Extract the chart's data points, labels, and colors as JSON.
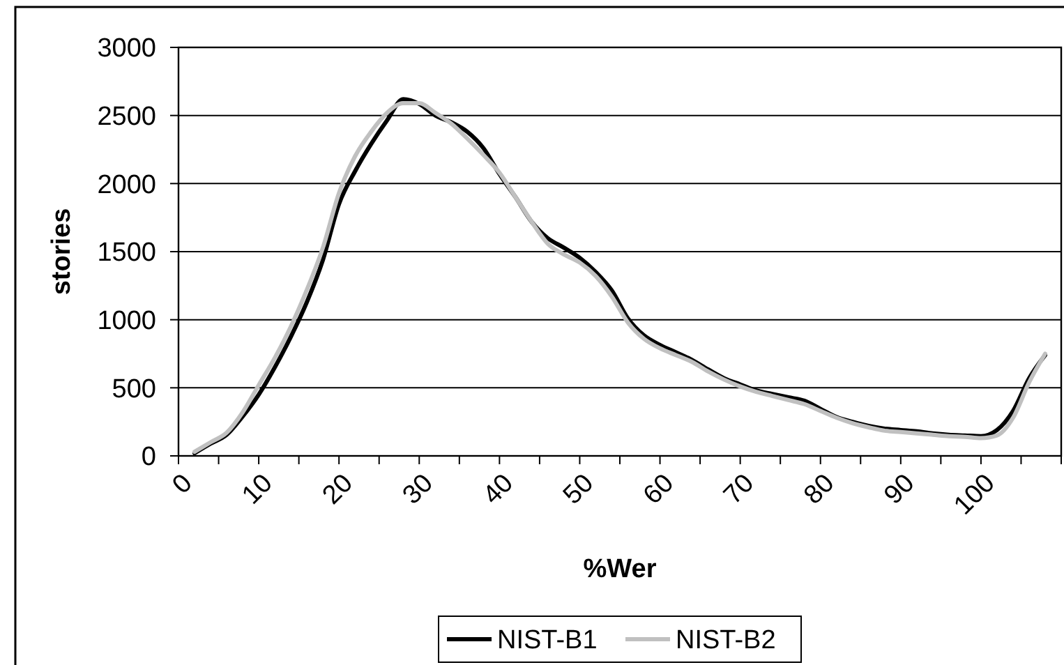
{
  "chart_data": {
    "type": "line",
    "xlabel": "%Wer",
    "ylabel": "stories",
    "x": [
      2,
      4,
      6,
      8,
      10,
      12,
      14,
      16,
      18,
      20,
      22,
      24,
      26,
      28,
      30,
      32,
      34,
      36,
      38,
      40,
      42,
      44,
      46,
      48,
      50,
      52,
      54,
      56,
      58,
      60,
      62,
      64,
      66,
      68,
      70,
      72,
      74,
      76,
      78,
      80,
      82,
      84,
      86,
      88,
      90,
      92,
      94,
      96,
      98,
      100,
      102,
      104,
      106,
      108
    ],
    "series": [
      {
        "name": "NIST-B1",
        "color": "#000000",
        "values": [
          20,
          90,
          155,
          290,
          450,
          650,
          875,
          1130,
          1440,
          1850,
          2090,
          2290,
          2465,
          2620,
          2585,
          2500,
          2450,
          2380,
          2260,
          2070,
          1900,
          1720,
          1600,
          1530,
          1455,
          1350,
          1215,
          1010,
          885,
          815,
          760,
          705,
          635,
          570,
          525,
          480,
          455,
          430,
          405,
          345,
          285,
          250,
          220,
          200,
          190,
          180,
          165,
          155,
          150,
          145,
          190,
          330,
          570,
          740
        ]
      },
      {
        "name": "NIST-B2",
        "color": "#c0c0c0",
        "values": [
          30,
          100,
          170,
          320,
          520,
          720,
          950,
          1220,
          1530,
          1930,
          2200,
          2380,
          2520,
          2590,
          2590,
          2520,
          2440,
          2330,
          2210,
          2080,
          1900,
          1720,
          1560,
          1480,
          1420,
          1320,
          1170,
          980,
          860,
          790,
          740,
          690,
          620,
          560,
          510,
          470,
          440,
          410,
          380,
          330,
          280,
          240,
          210,
          185,
          175,
          165,
          155,
          145,
          140,
          130,
          150,
          280,
          540,
          750
        ]
      }
    ],
    "xlim": [
      0,
      110
    ],
    "xticks": [
      0,
      {
        "value": 5,
        "label": null
      },
      10,
      {
        "value": 15,
        "label": null
      },
      20,
      {
        "value": 25,
        "label": null
      },
      30,
      {
        "value": 35,
        "label": null
      },
      40,
      {
        "value": 45,
        "label": null
      },
      50,
      {
        "value": 55,
        "label": null
      },
      60,
      {
        "value": 65,
        "label": null
      },
      70,
      {
        "value": 75,
        "label": null
      },
      80,
      {
        "value": 85,
        "label": null
      },
      90,
      {
        "value": 95,
        "label": null
      },
      100,
      {
        "value": 105,
        "label": null
      },
      {
        "value": 110,
        "label": null
      }
    ],
    "ylim": [
      0,
      3000
    ],
    "yticks": [
      0,
      500,
      1000,
      1500,
      2000,
      2500,
      3000
    ],
    "grid": "y",
    "legend": "bottom",
    "marker": "none",
    "line_style": "solid"
  }
}
